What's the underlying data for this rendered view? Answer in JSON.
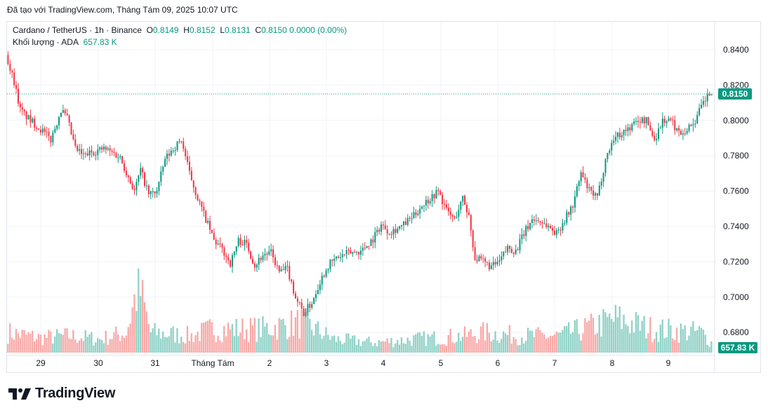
{
  "caption": "Đã tạo với TradingView.com, Tháng Tám 09, 2025 10:07 UTC",
  "legend": {
    "symbol": "Cardano / TetherUS · 1h · Binance",
    "o_label": "O",
    "o_value": "0.8149",
    "h_label": "H",
    "h_value": "0.8152",
    "l_label": "L",
    "l_value": "0.8131",
    "c_label": "C",
    "c_value": "0.8150",
    "change": "0.0000 (0.00%)",
    "volume_label": "Khối lượng · ADA",
    "volume_value": "657.83 K"
  },
  "price_tag": "0.8150",
  "volume_tag": "657.83 K",
  "brand": {
    "name": "TradingView"
  },
  "colors": {
    "up": "#089981",
    "down": "#f23645",
    "up_vol": "#8fd1c6",
    "down_vol": "#f7a9a7",
    "grid": "#f0f3fa"
  },
  "chart_data": {
    "type": "candlestick",
    "symbol": "Cardano / TetherUS",
    "interval": "1h",
    "exchange": "Binance",
    "y_ticks": [
      0.84,
      0.82,
      0.8,
      0.78,
      0.76,
      0.74,
      0.72,
      0.7,
      0.68
    ],
    "y_tick_labels": [
      "0.8400",
      "0.8200",
      "0.8000",
      "0.7800",
      "0.7600",
      "0.7400",
      "0.7200",
      "0.7000",
      "0.6800"
    ],
    "ylim": [
      0.6735,
      0.8465
    ],
    "x_ticks": [
      "29",
      "30",
      "31",
      "Tháng Tám",
      "2",
      "3",
      "4",
      "5",
      "6",
      "7",
      "8",
      "9"
    ],
    "last_close": 0.815,
    "anchors": [
      [
        0,
        0.837
      ],
      [
        4,
        0.822
      ],
      [
        7,
        0.806
      ],
      [
        11,
        0.801
      ],
      [
        14,
        0.798
      ],
      [
        18,
        0.794
      ],
      [
        22,
        0.789
      ],
      [
        27,
        0.806
      ],
      [
        30,
        0.801
      ],
      [
        34,
        0.784
      ],
      [
        38,
        0.78
      ],
      [
        42,
        0.782
      ],
      [
        48,
        0.784
      ],
      [
        52,
        0.782
      ],
      [
        56,
        0.779
      ],
      [
        60,
        0.768
      ],
      [
        63,
        0.76
      ],
      [
        66,
        0.772
      ],
      [
        70,
        0.758
      ],
      [
        74,
        0.76
      ],
      [
        78,
        0.778
      ],
      [
        82,
        0.784
      ],
      [
        86,
        0.789
      ],
      [
        90,
        0.77
      ],
      [
        94,
        0.756
      ],
      [
        98,
        0.744
      ],
      [
        102,
        0.732
      ],
      [
        106,
        0.727
      ],
      [
        110,
        0.719
      ],
      [
        114,
        0.732
      ],
      [
        118,
        0.73
      ],
      [
        122,
        0.718
      ],
      [
        126,
        0.724
      ],
      [
        130,
        0.725
      ],
      [
        134,
        0.714
      ],
      [
        138,
        0.716
      ],
      [
        142,
        0.7
      ],
      [
        146,
        0.691
      ],
      [
        150,
        0.697
      ],
      [
        154,
        0.709
      ],
      [
        158,
        0.718
      ],
      [
        162,
        0.722
      ],
      [
        168,
        0.725
      ],
      [
        174,
        0.726
      ],
      [
        180,
        0.733
      ],
      [
        184,
        0.741
      ],
      [
        188,
        0.737
      ],
      [
        194,
        0.74
      ],
      [
        200,
        0.746
      ],
      [
        204,
        0.752
      ],
      [
        208,
        0.756
      ],
      [
        212,
        0.76
      ],
      [
        216,
        0.749
      ],
      [
        220,
        0.744
      ],
      [
        224,
        0.756
      ],
      [
        227,
        0.746
      ],
      [
        230,
        0.722
      ],
      [
        234,
        0.72
      ],
      [
        238,
        0.717
      ],
      [
        242,
        0.72
      ],
      [
        246,
        0.728
      ],
      [
        250,
        0.726
      ],
      [
        254,
        0.736
      ],
      [
        258,
        0.744
      ],
      [
        262,
        0.743
      ],
      [
        266,
        0.74
      ],
      [
        270,
        0.736
      ],
      [
        274,
        0.744
      ],
      [
        278,
        0.752
      ],
      [
        282,
        0.77
      ],
      [
        286,
        0.76
      ],
      [
        290,
        0.756
      ],
      [
        294,
        0.778
      ],
      [
        298,
        0.79
      ],
      [
        302,
        0.793
      ],
      [
        306,
        0.796
      ],
      [
        310,
        0.8
      ],
      [
        314,
        0.8
      ],
      [
        318,
        0.789
      ],
      [
        322,
        0.8
      ],
      [
        326,
        0.8
      ],
      [
        330,
        0.793
      ],
      [
        334,
        0.795
      ],
      [
        338,
        0.8
      ],
      [
        342,
        0.81
      ],
      [
        345,
        0.815
      ]
    ],
    "volume_anchors": [
      [
        0,
        0.3
      ],
      [
        16,
        0.22
      ],
      [
        30,
        0.25
      ],
      [
        45,
        0.2
      ],
      [
        58,
        0.3
      ],
      [
        64,
        1.0
      ],
      [
        70,
        0.3
      ],
      [
        90,
        0.25
      ],
      [
        100,
        0.35
      ],
      [
        124,
        0.35
      ],
      [
        144,
        0.45
      ],
      [
        160,
        0.2
      ],
      [
        180,
        0.15
      ],
      [
        200,
        0.2
      ],
      [
        224,
        0.25
      ],
      [
        234,
        0.3
      ],
      [
        250,
        0.25
      ],
      [
        270,
        0.25
      ],
      [
        288,
        0.4
      ],
      [
        298,
        0.5
      ],
      [
        316,
        0.35
      ],
      [
        340,
        0.3
      ],
      [
        345,
        0.15
      ]
    ]
  }
}
